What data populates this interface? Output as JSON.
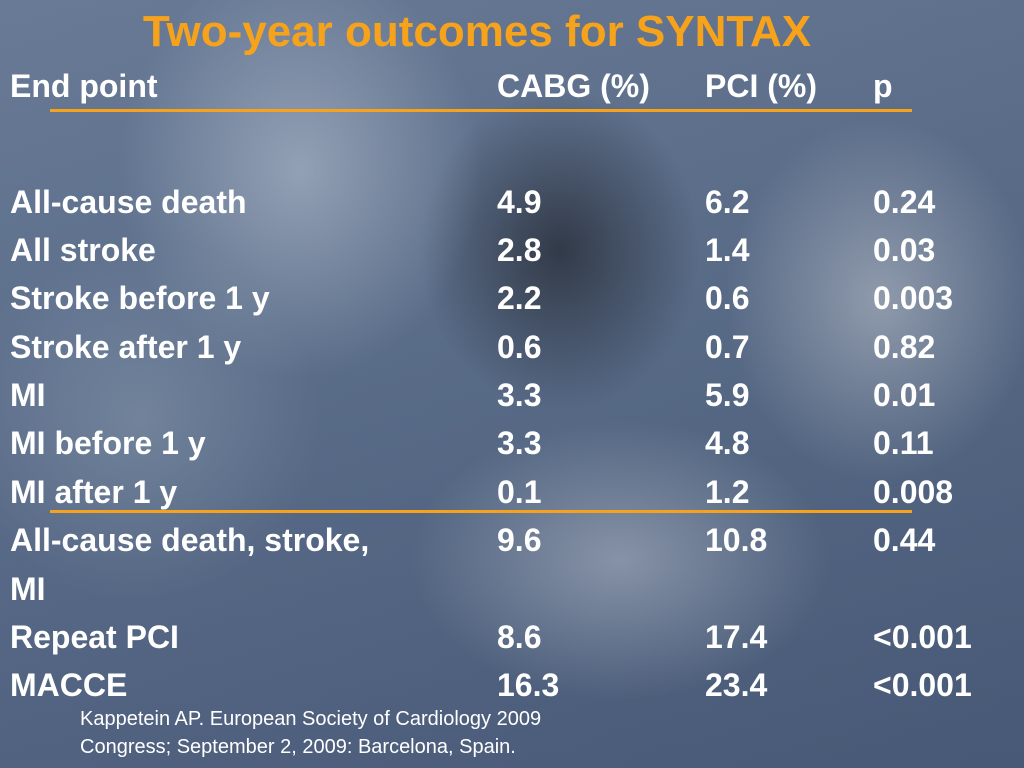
{
  "title": "Two-year outcomes for SYNTAX",
  "table": {
    "headers": [
      "End point",
      "CABG (%)",
      "PCI (%)",
      "p"
    ],
    "rows": [
      {
        "end_point": "All-cause death",
        "cabg": "4.9",
        "pci": "6.2",
        "p": "0.24"
      },
      {
        "end_point": "All stroke",
        "cabg": "2.8",
        "pci": "1.4",
        "p": "0.03"
      },
      {
        "end_point": "Stroke before 1 y",
        "cabg": "2.2",
        "pci": "0.6",
        "p": "0.003"
      },
      {
        "end_point": "Stroke after 1 y",
        "cabg": "0.6",
        "pci": "0.7",
        "p": "0.82"
      },
      {
        "end_point": "MI",
        "cabg": "3.3",
        "pci": "5.9",
        "p": "0.01"
      },
      {
        "end_point": "MI before 1 y",
        "cabg": "3.3",
        "pci": "4.8",
        "p": "0.11"
      },
      {
        "end_point": "MI after 1 y",
        "cabg": "0.1",
        "pci": "1.2",
        "p": "0.008"
      },
      {
        "end_point": "All-cause death, stroke,",
        "end_point_cont": "MI",
        "cabg": "9.6",
        "pci": "10.8",
        "p": "0.44"
      },
      {
        "end_point": "Repeat PCI",
        "cabg": "8.6",
        "pci": "17.4",
        "p": "<0.001"
      },
      {
        "end_point": "MACCE",
        "cabg": "16.3",
        "pci": "23.4",
        "p": "<0.001"
      }
    ]
  },
  "citation": {
    "line1": "Kappetein  AP. European Society of Cardiology 2009",
    "line2": "Congress; September 2, 2009: Barcelona, Spain."
  },
  "colors": {
    "accent": "#f7a21b",
    "text": "#ffffff",
    "background": "#566a88"
  }
}
